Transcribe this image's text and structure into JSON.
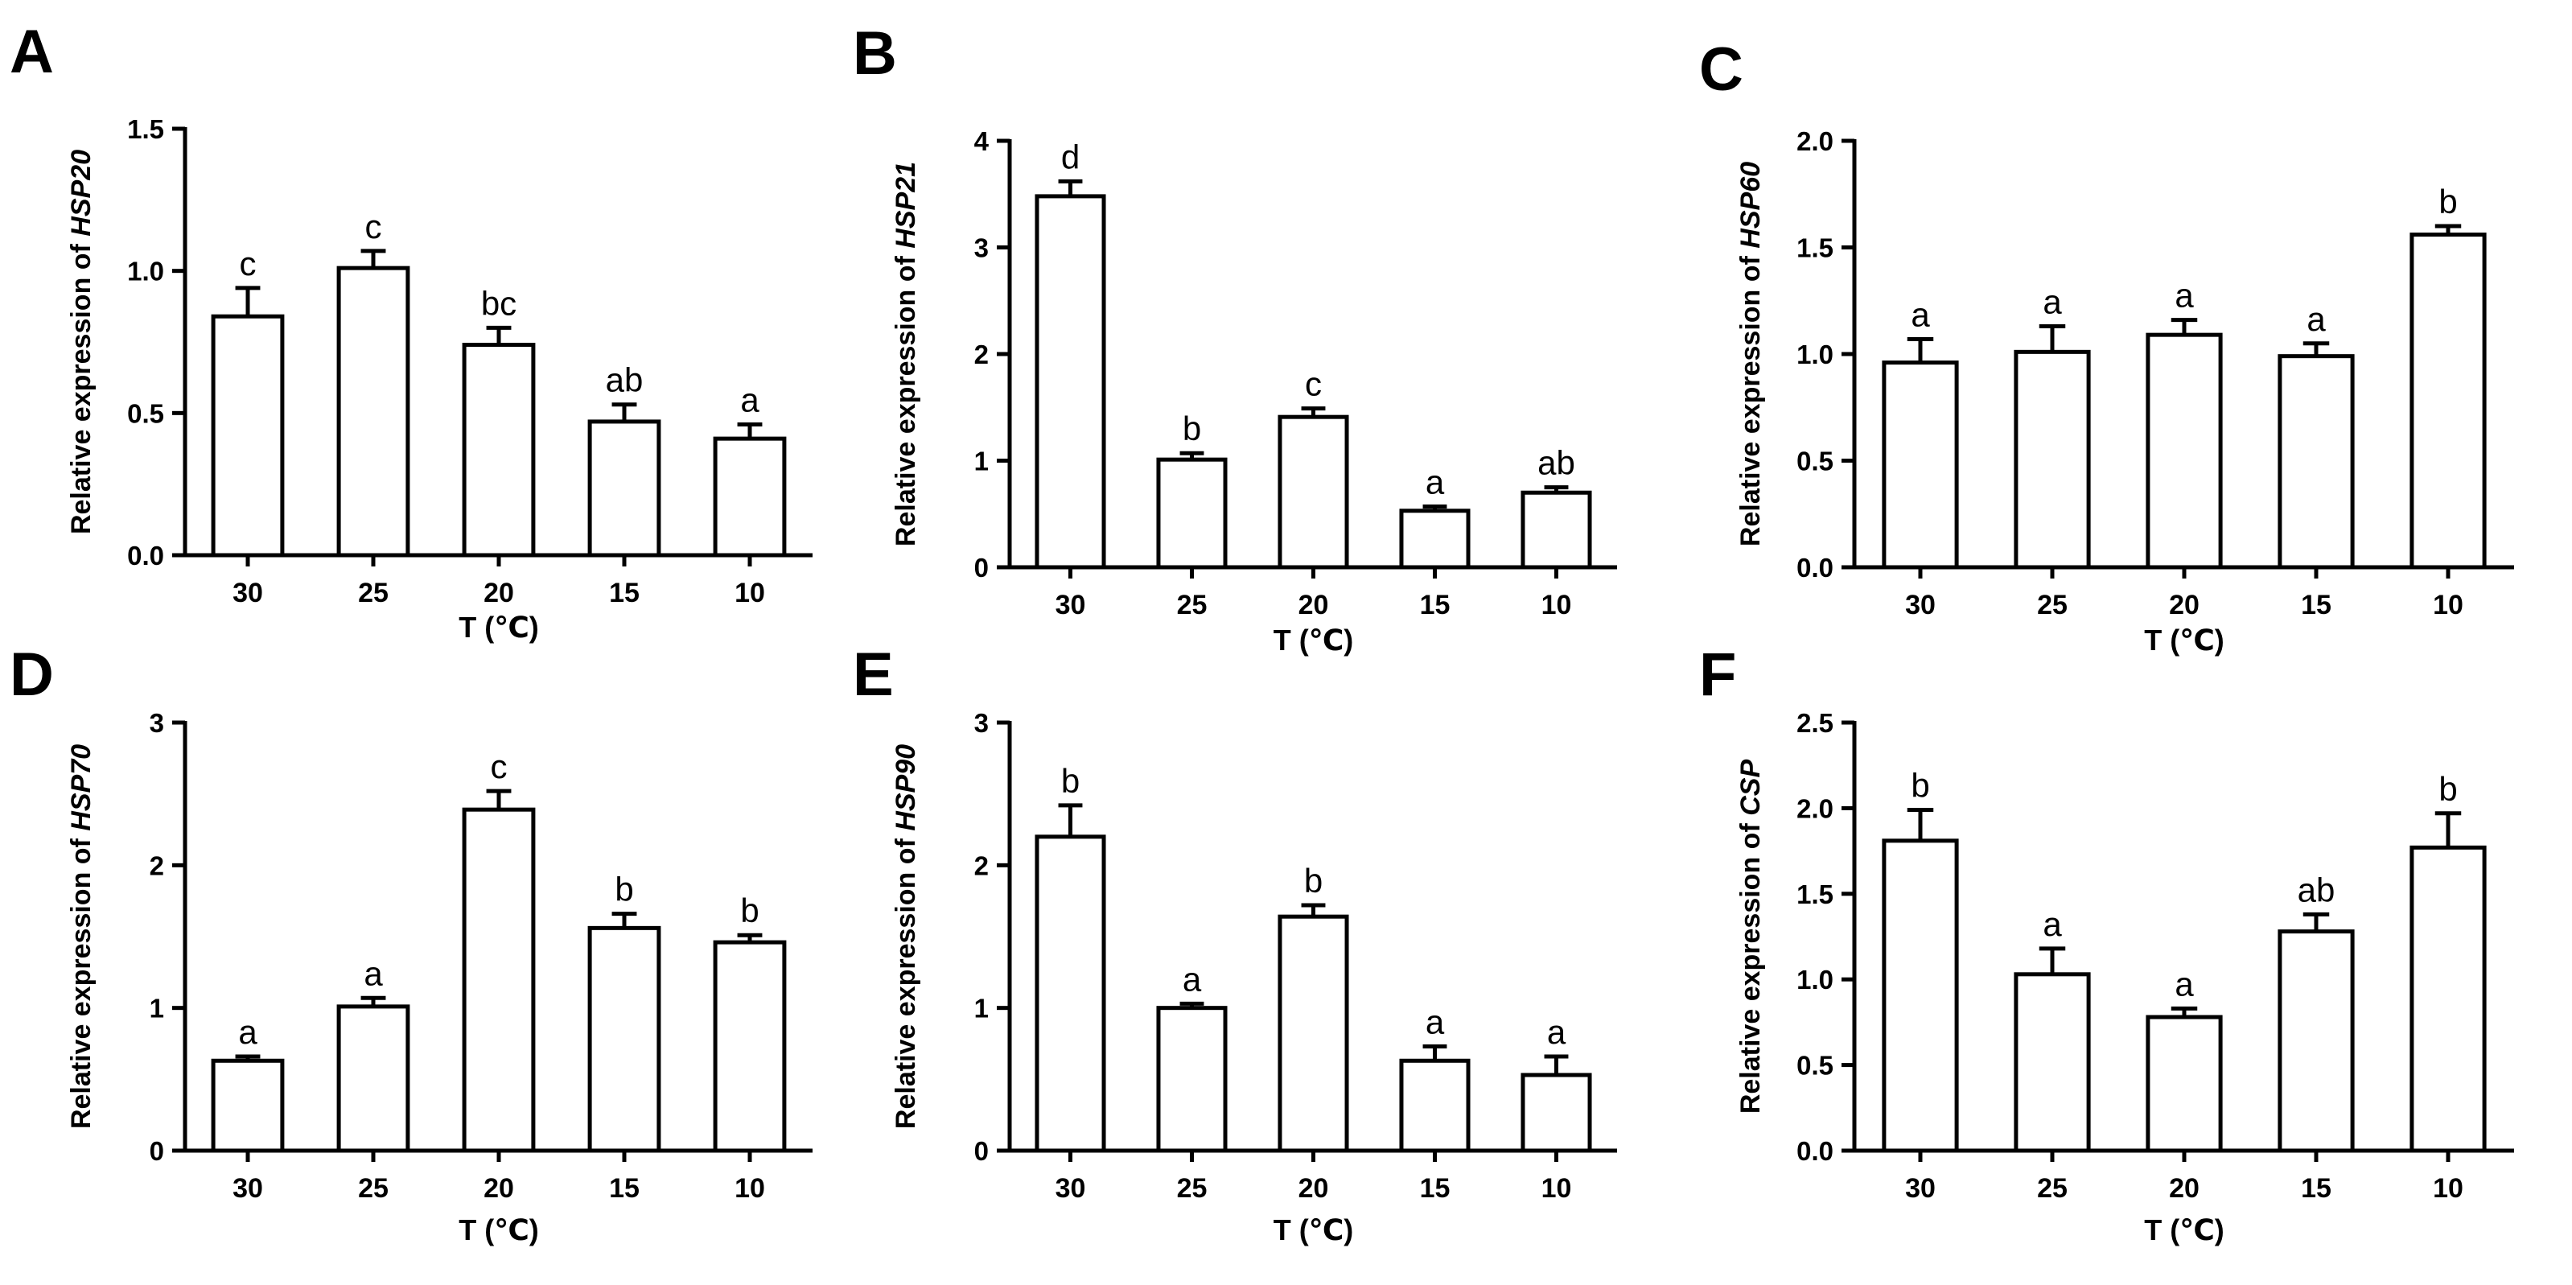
{
  "figure": {
    "background": "#ffffff",
    "bar_fill": "#ffffff",
    "stroke": "#000000"
  },
  "chart_data": [
    {
      "panel": "A",
      "type": "bar",
      "categories": [
        "30",
        "25",
        "20",
        "15",
        "10"
      ],
      "values": [
        0.84,
        1.01,
        0.74,
        0.47,
        0.41
      ],
      "errors": [
        0.1,
        0.06,
        0.06,
        0.06,
        0.05
      ],
      "labels": [
        "c",
        "c",
        "bc",
        "ab",
        "a"
      ],
      "ylabel_prefix": "Relative expression of ",
      "ylabel_gene": "HSP20",
      "xlabel": "T (℃)",
      "ylim": [
        0,
        1.5
      ],
      "yticks": [
        "0.0",
        "0.5",
        "1.0",
        "1.5"
      ],
      "ytick_values": [
        0,
        0.5,
        1.0,
        1.5
      ]
    },
    {
      "panel": "B",
      "type": "bar",
      "categories": [
        "30",
        "25",
        "20",
        "15",
        "10"
      ],
      "values": [
        3.48,
        1.01,
        1.41,
        0.53,
        0.7
      ],
      "errors": [
        0.14,
        0.06,
        0.08,
        0.04,
        0.05
      ],
      "labels": [
        "d",
        "b",
        "c",
        "a",
        "ab"
      ],
      "ylabel_prefix": "Relative expression of ",
      "ylabel_gene": "HSP21",
      "xlabel": "T (℃)",
      "ylim": [
        0,
        4
      ],
      "yticks": [
        "0",
        "1",
        "2",
        "3",
        "4"
      ],
      "ytick_values": [
        0,
        1,
        2,
        3,
        4
      ]
    },
    {
      "panel": "C",
      "type": "bar",
      "categories": [
        "30",
        "25",
        "20",
        "15",
        "10"
      ],
      "values": [
        0.96,
        1.01,
        1.09,
        0.99,
        1.56
      ],
      "errors": [
        0.11,
        0.12,
        0.07,
        0.06,
        0.04
      ],
      "labels": [
        "a",
        "a",
        "a",
        "a",
        "b"
      ],
      "ylabel_prefix": "Relative expression of ",
      "ylabel_gene": "HSP60",
      "xlabel": "T (℃)",
      "ylim": [
        0,
        2.0
      ],
      "yticks": [
        "0.0",
        "0.5",
        "1.0",
        "1.5",
        "2.0"
      ],
      "ytick_values": [
        0,
        0.5,
        1.0,
        1.5,
        2.0
      ]
    },
    {
      "panel": "D",
      "type": "bar",
      "categories": [
        "30",
        "25",
        "20",
        "15",
        "10"
      ],
      "values": [
        0.63,
        1.01,
        2.39,
        1.56,
        1.46
      ],
      "errors": [
        0.03,
        0.06,
        0.13,
        0.1,
        0.05
      ],
      "labels": [
        "a",
        "a",
        "c",
        "b",
        "b"
      ],
      "ylabel_prefix": "Relative expression of ",
      "ylabel_gene": "HSP70",
      "xlabel": "T (℃)",
      "ylim": [
        0,
        3
      ],
      "yticks": [
        "0",
        "1",
        "2",
        "3"
      ],
      "ytick_values": [
        0,
        1,
        2,
        3
      ]
    },
    {
      "panel": "E",
      "type": "bar",
      "categories": [
        "30",
        "25",
        "20",
        "15",
        "10"
      ],
      "values": [
        2.2,
        1.0,
        1.64,
        0.63,
        0.53
      ],
      "errors": [
        0.22,
        0.03,
        0.08,
        0.1,
        0.13
      ],
      "labels": [
        "b",
        "a",
        "b",
        "a",
        "a"
      ],
      "ylabel_prefix": "Relative expression of ",
      "ylabel_gene": "HSP90",
      "xlabel": "T (℃)",
      "ylim": [
        0,
        3
      ],
      "yticks": [
        "0",
        "1",
        "2",
        "3"
      ],
      "ytick_values": [
        0,
        1,
        2,
        3
      ]
    },
    {
      "panel": "F",
      "type": "bar",
      "categories": [
        "30",
        "25",
        "20",
        "15",
        "10"
      ],
      "values": [
        1.81,
        1.03,
        0.78,
        1.28,
        1.77
      ],
      "errors": [
        0.18,
        0.15,
        0.05,
        0.1,
        0.2
      ],
      "labels": [
        "b",
        "a",
        "a",
        "ab",
        "b"
      ],
      "ylabel_prefix": "Relative expression of ",
      "ylabel_gene": "CSP",
      "xlabel": "T (℃)",
      "ylim": [
        0,
        2.5
      ],
      "yticks": [
        "0.0",
        "0.5",
        "1.0",
        "1.5",
        "2.0",
        "2.5"
      ],
      "ytick_values": [
        0,
        0.5,
        1.0,
        1.5,
        2.0,
        2.5
      ]
    }
  ]
}
